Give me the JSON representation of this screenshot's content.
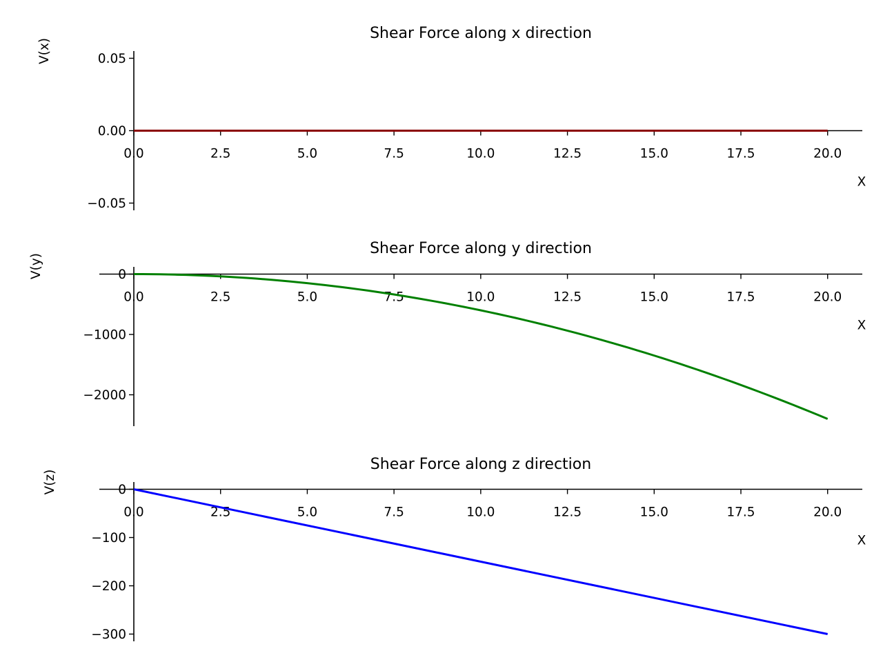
{
  "chart_data": [
    {
      "type": "line",
      "title": "Shear Force along x direction",
      "xlabel": "X",
      "ylabel": "V(x)",
      "xlim": [
        0,
        21
      ],
      "ylim": [
        -0.055,
        0.055
      ],
      "x_ticks": [
        0,
        2.5,
        5,
        7.5,
        10,
        12.5,
        15,
        17.5,
        20
      ],
      "x_tick_labels": [
        "0.0",
        "2.5",
        "5.0",
        "7.5",
        "10.0",
        "12.5",
        "15.0",
        "17.5",
        "20.0"
      ],
      "y_ticks": [
        0.05,
        0,
        -0.05
      ],
      "y_tick_labels": [
        "0.05",
        "0.00",
        "−0.05"
      ],
      "grid": false,
      "series": [
        {
          "color": "#8b0000",
          "x": [
            0,
            20
          ],
          "y": [
            0,
            0
          ]
        }
      ]
    },
    {
      "type": "line",
      "title": "Shear Force along y direction",
      "xlabel": "X",
      "ylabel": "V(y)",
      "xlim": [
        0,
        21
      ],
      "ylim": [
        -2520,
        120
      ],
      "x_ticks": [
        0,
        2.5,
        5,
        7.5,
        10,
        12.5,
        15,
        17.5,
        20
      ],
      "x_tick_labels": [
        "0.0",
        "2.5",
        "5.0",
        "7.5",
        "10.0",
        "12.5",
        "15.0",
        "17.5",
        "20.0"
      ],
      "y_ticks": [
        0,
        -1000,
        -2000
      ],
      "y_tick_labels": [
        "0",
        "−1000",
        "−2000"
      ],
      "grid": false,
      "series": [
        {
          "color": "#008000",
          "x": [
            0,
            2.5,
            5,
            7.5,
            10,
            12.5,
            15,
            17.5,
            20
          ],
          "y": [
            0,
            -37.5,
            -150,
            -337.5,
            -600,
            -937.5,
            -1350,
            -1837.5,
            -2400
          ]
        }
      ]
    },
    {
      "type": "line",
      "title": "Shear Force along z direction",
      "xlabel": "X",
      "ylabel": "V(z)",
      "xlim": [
        0,
        21
      ],
      "ylim": [
        -315,
        15
      ],
      "x_ticks": [
        0,
        2.5,
        5,
        7.5,
        10,
        12.5,
        15,
        17.5,
        20
      ],
      "x_tick_labels": [
        "0.0",
        "2.5",
        "5.0",
        "7.5",
        "10.0",
        "12.5",
        "15.0",
        "17.5",
        "20.0"
      ],
      "y_ticks": [
        0,
        -100,
        -200,
        -300
      ],
      "y_tick_labels": [
        "0",
        "−100",
        "−200",
        "−300"
      ],
      "grid": false,
      "series": [
        {
          "color": "#0000ff",
          "x": [
            0,
            20
          ],
          "y": [
            0,
            -300
          ]
        }
      ]
    }
  ]
}
